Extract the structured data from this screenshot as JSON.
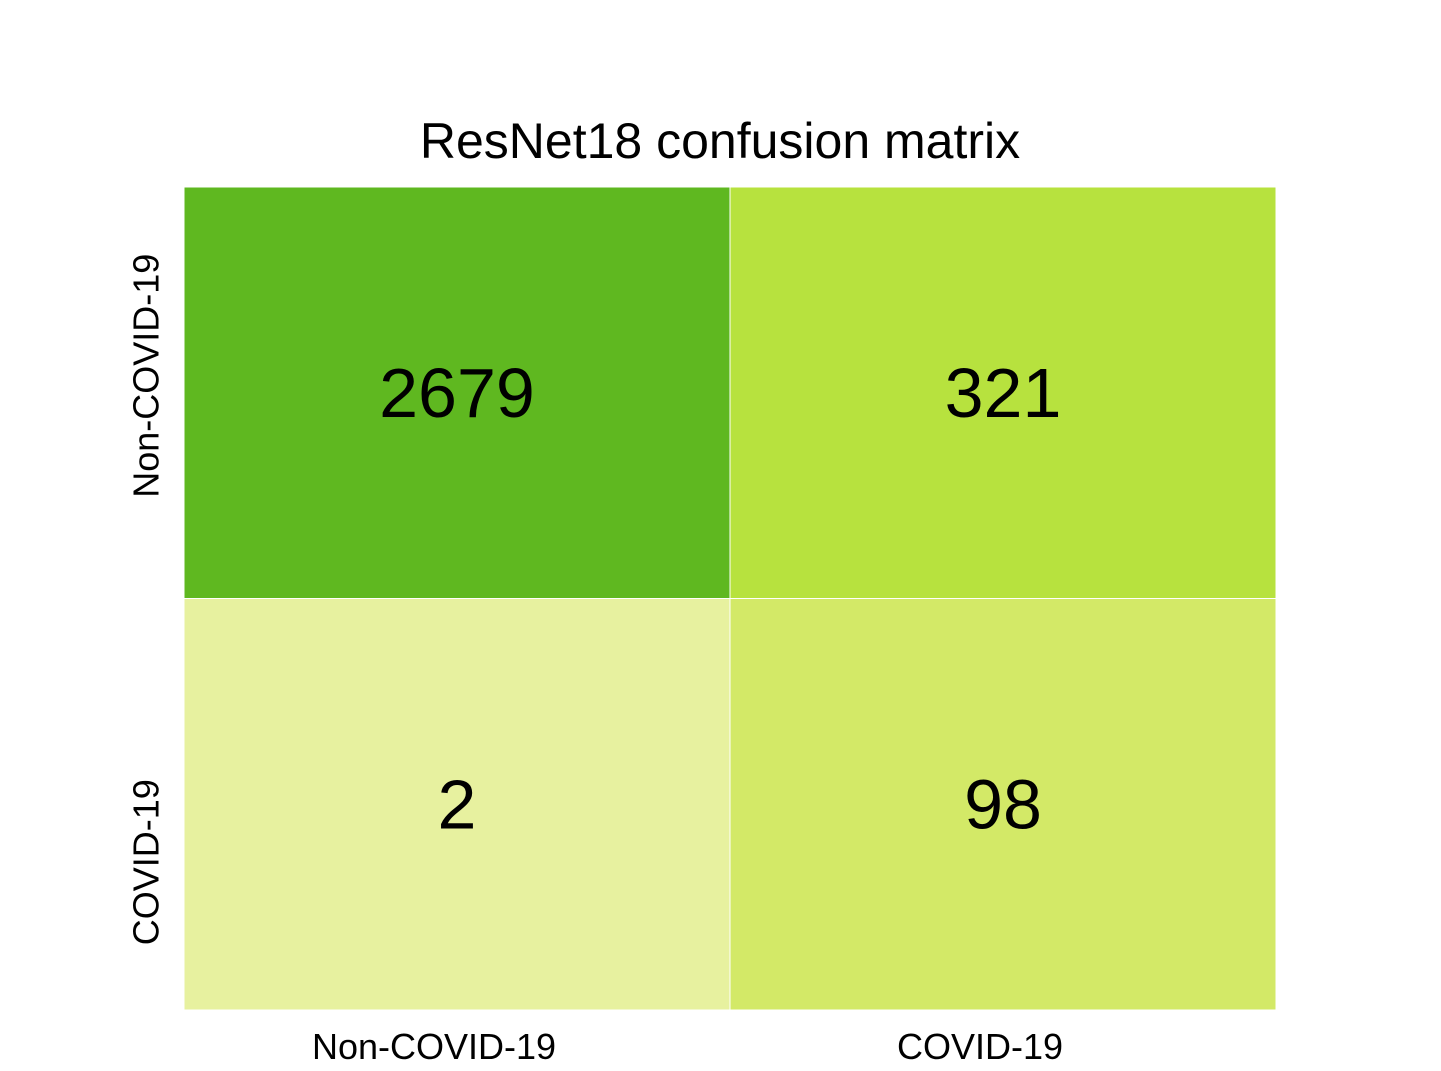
{
  "chart_data": {
    "type": "heatmap",
    "title": "ResNet18 confusion matrix",
    "xlabel": "",
    "ylabel": "",
    "x_categories": [
      "Non-COVID-19",
      "COVID-19"
    ],
    "y_categories": [
      "Non-COVID-19",
      "COVID-19"
    ],
    "values": [
      [
        2679,
        321
      ],
      [
        2,
        98
      ]
    ],
    "cell_colors": [
      [
        "#5fb820",
        "#b7e23e"
      ],
      [
        "#e7f19f",
        "#d3e967"
      ]
    ],
    "grid": false,
    "legend": "none"
  }
}
